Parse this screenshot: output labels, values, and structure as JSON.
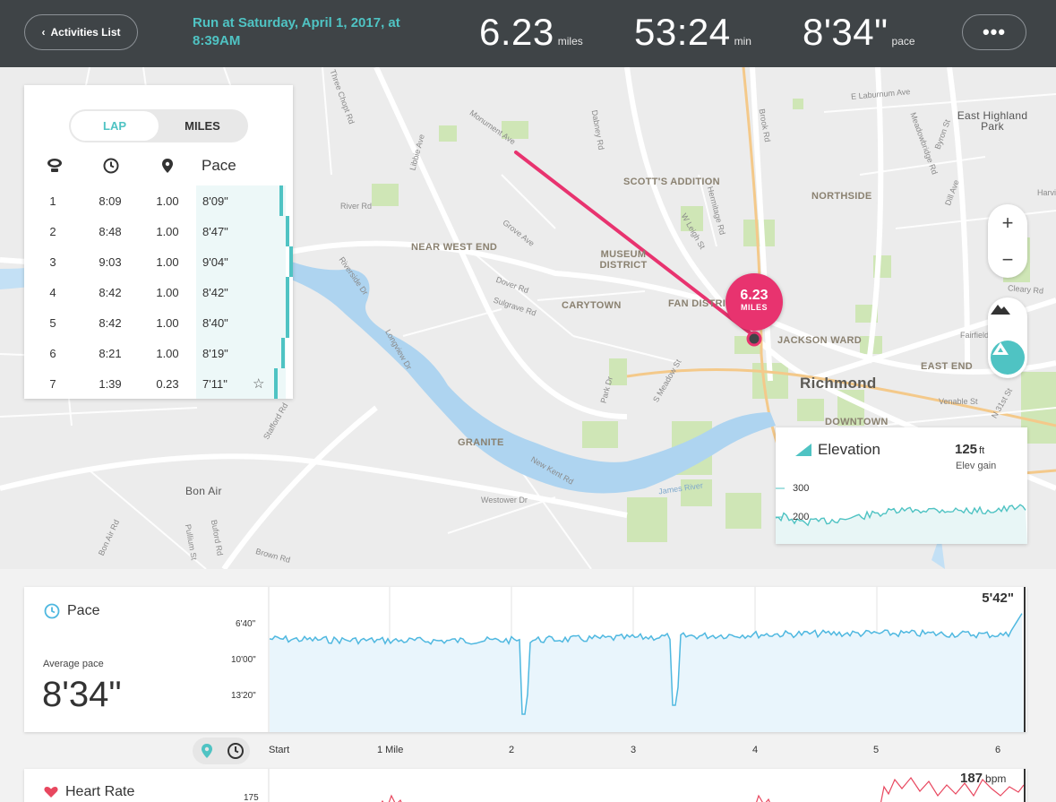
{
  "header": {
    "back_label": "Activities List",
    "title": "Run at Saturday, April 1, 2017, at 8:39AM",
    "distance": {
      "value": "6.23",
      "unit": "miles"
    },
    "duration": {
      "value": "53:24",
      "unit": "min"
    },
    "pace": {
      "value": "8'34\"",
      "unit": "pace"
    },
    "more_label": "•••"
  },
  "laps_panel": {
    "tabs": {
      "lap": "LAP",
      "miles": "MILES",
      "active": "LAP"
    },
    "pace_header": "Pace",
    "rows": [
      {
        "lap": "1",
        "time": "8:09",
        "distance": "1.00",
        "pace": "8'09\""
      },
      {
        "lap": "2",
        "time": "8:48",
        "distance": "1.00",
        "pace": "8'47\""
      },
      {
        "lap": "3",
        "time": "9:03",
        "distance": "1.00",
        "pace": "9'04\""
      },
      {
        "lap": "4",
        "time": "8:42",
        "distance": "1.00",
        "pace": "8'42\""
      },
      {
        "lap": "5",
        "time": "8:42",
        "distance": "1.00",
        "pace": "8'40\""
      },
      {
        "lap": "6",
        "time": "8:21",
        "distance": "1.00",
        "pace": "8'19\""
      },
      {
        "lap": "7",
        "time": "1:39",
        "distance": "0.23",
        "pace": "7'11\""
      }
    ]
  },
  "map": {
    "marker": {
      "value": "6.23",
      "unit": "MILES"
    },
    "zoom_in": "+",
    "zoom_out": "−",
    "neighborhoods": {
      "scotts_addition": "SCOTT'S ADDITION",
      "northside": "NORTHSIDE",
      "near_west_end": "NEAR WEST END",
      "museum_district": "MUSEUM DISTRICT",
      "carytown": "CARYTOWN",
      "fan_district": "FAN DISTRI",
      "jackson_ward": "JACKSON WARD",
      "richmond": "Richmond",
      "east_end": "EAST END",
      "downtown": "DOWNTOWN",
      "granite": "GRANITE",
      "east_highland_park": "East Highland Park",
      "bon_air": "Bon Air"
    },
    "streets": {
      "monument": "Monument Ave",
      "grove": "Grove Ave",
      "dover": "Dover Rd",
      "sulgrave": "Sulgrave Rd",
      "river": "River Rd",
      "riverside": "Riverside Dr",
      "longview": "Longview Dr",
      "park": "Park Dr",
      "meadow": "S Meadow St",
      "new_kent": "New Kent Rd",
      "westower": "Westower Dr",
      "james_river": "James River",
      "hermitage": "Hermitage Rd",
      "dabney": "Dabney Rd",
      "brook": "Brook Rd",
      "laburnum": "E Laburnum Ave",
      "libbie": "Libbie Ave",
      "three_chopt": "Three Chopt Rd",
      "meadowbridge": "Meadowbridge Rd",
      "fairfield": "Fairfield",
      "venable": "Venable St",
      "n31": "N 31st St",
      "buford": "Buford Rd",
      "pullium": "Pullium St",
      "bon_air_rd": "Bon Air Rd",
      "brown": "Brown Rd",
      "stafford": "Stafford Rd",
      "cleary": "Cleary Rd",
      "w_leigh": "W Leigh St",
      "byron": "Byron St",
      "dill": "Dill Ave",
      "harvie": "Harvi"
    }
  },
  "elevation": {
    "title": "Elevation",
    "gain_value": "125",
    "gain_unit": "ft",
    "gain_label": "Elev gain",
    "ticks": [
      "300",
      "200"
    ]
  },
  "pace_chart": {
    "title": "Pace",
    "average_label": "Average pace",
    "average_value": "8'34\"",
    "max_value": "5'42\"",
    "y_ticks": [
      "6'40\"",
      "10'00\"",
      "13'20\""
    ],
    "x_labels": [
      "Start",
      "1 Mile",
      "2",
      "3",
      "4",
      "5",
      "6"
    ]
  },
  "heart_rate": {
    "title": "Heart Rate",
    "y_tick": "175",
    "max_value": "187",
    "max_unit": "bpm"
  },
  "colors": {
    "accent": "#4fc3c3",
    "route": "#e8336f",
    "header_bg": "#3f4447",
    "pace_line": "#4fb8e0",
    "heart": "#e8475f"
  }
}
